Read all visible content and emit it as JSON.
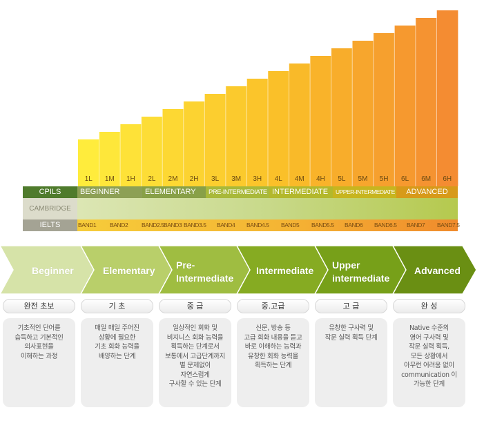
{
  "chart_data": {
    "type": "bar",
    "categories": [
      "1L",
      "1M",
      "1H",
      "2L",
      "2M",
      "2H",
      "3L",
      "3M",
      "3H",
      "4L",
      "4M",
      "4H",
      "5L",
      "5M",
      "5H",
      "6L",
      "6M",
      "6H"
    ],
    "values": [
      1,
      2,
      3,
      4,
      5,
      6,
      7,
      8,
      9,
      10,
      11,
      12,
      13,
      14,
      15,
      16,
      17,
      18
    ],
    "title": "",
    "xlabel": "",
    "ylabel": "",
    "ylim": [
      0,
      18
    ]
  },
  "rows": {
    "cpils_label": "CPILS",
    "cambridge_label": "CAMBRIDGE",
    "ielts_label": "IELTS"
  },
  "cpils_segments": [
    "BEGINNER",
    "ELEMENTARY",
    "PRE-INTERMEDIATE",
    "INTERMEDIATE",
    "UPPER-INTERMEDIATE",
    "ADVANCED"
  ],
  "ielts_bands": [
    "BAND1",
    "BAND2",
    "BAND2.5",
    "BAND3",
    "BAND3.5",
    "BAND4",
    "BAND4.5",
    "BAND5",
    "BAND5.5",
    "BAND6",
    "BAND6.5",
    "BAND7",
    "BAND7.5"
  ],
  "stages": [
    {
      "line1": "Beginner",
      "line2": "",
      "tab": "완전 초보",
      "desc": "기초적인 단어를\n습득하고 기본적인\n의사표현을\n이해하는 과정"
    },
    {
      "line1": "Elementary",
      "line2": "",
      "tab": "기 초",
      "desc": "매일 매일 주어진\n상황에 필요한\n기초 회화 능력을\n배양하는 단계"
    },
    {
      "line1": "Pre-",
      "line2": "Intermediate",
      "tab": "중 급",
      "desc": "일상적인 회화 및\n비지니스 회화 능력을\n획득하는 단계로서\n보통에서 고급단계까지\n별 문제없이\n자연스럽게\n구사할 수 있는 단계"
    },
    {
      "line1": "Intermediate",
      "line2": "",
      "tab": "중.고급",
      "desc": "신문, 방송 등\n고급 회화 내용을 듣고\n바로 이해하는 능력과\n유창한 회화 능력을\n획득하는 단계"
    },
    {
      "line1": "Upper",
      "line2": "intermediate",
      "tab": "고 급",
      "desc": "유창한 구사력 및\n작문 실력 획득 단계"
    },
    {
      "line1": "Advanced",
      "line2": "",
      "tab": "완 성",
      "desc": "Native 수준의\n영어 구사력 및\n작문 실력 획득,\n모든 상황에서\n아무런 어려움 없이\ncommunication 이\n가능한 단계"
    }
  ],
  "colors": {
    "cpils_segments": [
      "#8da055",
      "#88a047",
      "#a9b93a",
      "#b3b82c",
      "#c7b51f",
      "#d79a1a"
    ],
    "arrows": [
      "#d6e3a8",
      "#b9cf6a",
      "#9fbd41",
      "#86ab22",
      "#77a019",
      "#6a8f13"
    ]
  }
}
